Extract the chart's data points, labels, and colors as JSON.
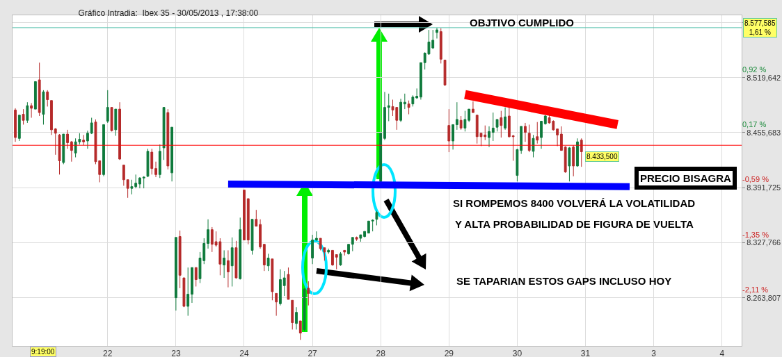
{
  "chart_data": {
    "type": "candlestick",
    "title": "Gráfico Intradia:  Ibex 35 - 30/05/2013 , 17:38:00",
    "categories": [
      null,
      null,
      null,
      null,
      null,
      null,
      null,
      null,
      null,
      null,
      null,
      null,
      null,
      null,
      null,
      null,
      null,
      null,
      null,
      null,
      null,
      null,
      null,
      "22",
      null,
      null,
      null,
      null,
      null,
      null,
      null,
      null,
      null,
      null,
      null,
      null,
      null,
      null,
      null,
      null,
      "23",
      null,
      null,
      null,
      null,
      null,
      null,
      null,
      null,
      null,
      null,
      null,
      null,
      null,
      null,
      null,
      null,
      "24",
      null,
      null,
      null,
      null,
      null,
      null,
      null,
      null,
      null,
      null,
      null,
      null,
      null,
      null,
      null,
      null,
      "27",
      null,
      null,
      null,
      null,
      null,
      null,
      null,
      null,
      null,
      null,
      null,
      null,
      null,
      null,
      null,
      null,
      "28",
      null,
      null,
      null,
      null,
      null,
      null,
      null,
      null,
      null,
      null,
      null,
      null,
      null,
      null,
      null,
      null,
      "29",
      null,
      null,
      null,
      null,
      null,
      null,
      null,
      null,
      null,
      null,
      null,
      null,
      null,
      null,
      null,
      null,
      "30",
      null,
      null,
      null,
      null,
      null,
      null,
      null,
      null,
      null,
      null,
      null,
      null,
      null,
      null,
      null,
      null,
      "31",
      null,
      null,
      null,
      null,
      null,
      null,
      null,
      null,
      null,
      null,
      null,
      null,
      null,
      null,
      null,
      null,
      "3",
      null,
      null,
      null,
      null,
      null,
      null,
      null,
      null,
      null,
      null,
      null,
      null,
      null,
      null,
      null,
      null,
      "4",
      null,
      null,
      null,
      null
    ],
    "ohlc": [
      [
        8482,
        8484,
        8445,
        8450
      ],
      [
        8449,
        8476,
        8446,
        8476
      ],
      [
        8477,
        8483,
        8465,
        8470
      ],
      [
        8470,
        8491,
        8467,
        8487
      ],
      [
        8487,
        8490,
        8473,
        8484
      ],
      [
        8483,
        8515,
        8483,
        8515
      ],
      [
        8517,
        8537,
        8475,
        8479
      ],
      [
        8477,
        8505,
        8465,
        8503
      ],
      [
        8503,
        8505,
        8486,
        8494
      ],
      [
        8493,
        8493,
        8453,
        8459
      ],
      [
        8460,
        8461,
        8430,
        8455
      ],
      [
        8453,
        8454,
        8407,
        8423
      ],
      [
        8421,
        8454,
        8419,
        8454
      ],
      [
        8454,
        8459,
        8437,
        8444
      ],
      [
        8445,
        8446,
        8422,
        8435
      ],
      [
        8432,
        8449,
        8427,
        8445
      ],
      [
        8445,
        8455,
        8442,
        8448
      ],
      [
        8447,
        8453,
        8441,
        8445
      ],
      [
        8446,
        8458,
        8437,
        8455
      ],
      [
        8455,
        8473,
        8454,
        8467
      ],
      [
        8468,
        8471,
        8419,
        8422
      ],
      [
        8423,
        8423,
        8398,
        8407
      ],
      [
        8407,
        8465,
        8405,
        8465
      ],
      [
        8469,
        8505,
        8467,
        8485
      ],
      [
        8485,
        8485,
        8457,
        8458
      ],
      [
        8459,
        8483,
        8452,
        8483
      ],
      [
        8483,
        8491,
        8424,
        8425
      ],
      [
        8418,
        8418,
        8394,
        8401
      ],
      [
        8401,
        8401,
        8380,
        8391
      ],
      [
        8391,
        8401,
        8384,
        8393
      ],
      [
        8393,
        8407,
        8391,
        8397
      ],
      [
        8396,
        8404,
        8391,
        8403
      ],
      [
        8403,
        8405,
        8391,
        8404
      ],
      [
        8405,
        8437,
        8404,
        8434
      ],
      [
        8433,
        8437,
        8407,
        8414
      ],
      [
        8414,
        8422,
        8404,
        8407
      ],
      [
        8407,
        8442,
        8403,
        8434
      ],
      [
        8438,
        8485,
        8424,
        8485
      ],
      [
        8479,
        8483,
        8413,
        8417
      ],
      [
        8409,
        8462,
        8399,
        8462
      ],
      [
        8264,
        8334,
        8249,
        8334
      ],
      [
        8335,
        8342,
        8275,
        8290
      ],
      [
        8287,
        8287,
        8253,
        8254
      ],
      [
        8254,
        8299,
        8243,
        8268
      ],
      [
        8268,
        8299,
        8258,
        8299
      ],
      [
        8299,
        8299,
        8277,
        8285
      ],
      [
        8286,
        8317,
        8281,
        8310
      ],
      [
        8307,
        8333,
        8303,
        8327
      ],
      [
        8327,
        8355,
        8321,
        8343
      ],
      [
        8343,
        8346,
        8317,
        8326
      ],
      [
        8329,
        8341,
        8323,
        8325
      ],
      [
        8329,
        8333,
        8290,
        8303
      ],
      [
        8302,
        8319,
        8287,
        8310
      ],
      [
        8307,
        8319,
        8276,
        8294
      ],
      [
        8301,
        8334,
        8277,
        8322
      ],
      [
        8322,
        8330,
        8286,
        8287
      ],
      [
        8286,
        8357,
        8285,
        8343
      ],
      [
        8389,
        8389,
        8331,
        8331
      ],
      [
        8379,
        8379,
        8326,
        8331
      ],
      [
        8319,
        8355,
        8314,
        8355
      ],
      [
        8355,
        8366,
        8347,
        8347
      ],
      [
        8349,
        8355,
        8321,
        8323
      ],
      [
        8326,
        8326,
        8295,
        8302
      ],
      [
        8301,
        8315,
        8295,
        8310
      ],
      [
        8309,
        8309,
        8261,
        8271
      ],
      [
        8269,
        8269,
        8243,
        8259
      ],
      [
        8257,
        8297,
        8255,
        8285
      ],
      [
        8278,
        8295,
        8266,
        8287
      ],
      [
        8291,
        8299,
        8262,
        8262
      ],
      [
        8261,
        8261,
        8227,
        8235
      ],
      [
        8234,
        8253,
        8227,
        8247
      ],
      [
        8237,
        8237,
        8215,
        8223
      ],
      [
        8227,
        8275,
        8225,
        8274
      ],
      [
        8275,
        8283,
        8255,
        8269
      ],
      [
        8310,
        8337,
        8303,
        8331
      ],
      [
        8331,
        8341,
        8330,
        8333
      ],
      [
        8333,
        8333,
        8319,
        8321
      ],
      [
        8322,
        8322,
        8307,
        8317
      ],
      [
        8317,
        8321,
        8315,
        8319
      ],
      [
        8319,
        8319,
        8301,
        8302
      ],
      [
        8314,
        8314,
        8297,
        8311
      ],
      [
        8302,
        8317,
        8301,
        8315
      ],
      [
        8319,
        8319,
        8313,
        8317
      ],
      [
        8315,
        8326,
        8314,
        8326
      ],
      [
        8326,
        8334,
        8318,
        8334
      ],
      [
        8334,
        8335,
        8330,
        8332
      ],
      [
        8333,
        8337,
        8329,
        8337
      ],
      [
        8335,
        8341,
        8334,
        8341
      ],
      [
        8339,
        8353,
        8339,
        8353
      ],
      [
        8353,
        8355,
        8341,
        8354
      ],
      [
        8355,
        8365,
        8348,
        8363
      ],
      [
        8399,
        8455,
        8398,
        8455
      ],
      [
        8449,
        8503,
        8447,
        8485
      ],
      [
        8485,
        8501,
        8469,
        8487
      ],
      [
        8486,
        8494,
        8475,
        8482
      ],
      [
        8485,
        8485,
        8459,
        8470
      ],
      [
        8470,
        8495,
        8468,
        8491
      ],
      [
        8489,
        8501,
        8483,
        8491
      ],
      [
        8489,
        8493,
        8477,
        8485
      ],
      [
        8489,
        8499,
        8486,
        8497
      ],
      [
        8496,
        8507,
        8495,
        8498
      ],
      [
        8497,
        8537,
        8494,
        8537
      ],
      [
        8537,
        8549,
        8529,
        8548
      ],
      [
        8547,
        8575,
        8546,
        8561
      ],
      [
        8554,
        8575,
        8553,
        8563
      ],
      [
        8572,
        8577.585,
        8565,
        8575
      ],
      [
        8573,
        8577,
        8536,
        8541
      ],
      [
        8540,
        8540,
        8510,
        8511
      ],
      [
        8464,
        8483,
        8433,
        8446
      ],
      [
        8446,
        8465,
        8436,
        8465
      ],
      [
        8465,
        8491,
        8459,
        8471
      ],
      [
        8470,
        8475,
        8459,
        8461
      ],
      [
        8461,
        8481,
        8457,
        8471
      ],
      [
        8470,
        8483,
        8468,
        8483
      ],
      [
        8483,
        8492,
        8479,
        8479
      ],
      [
        8476,
        8476,
        8443,
        8451
      ],
      [
        8455,
        8455,
        8440,
        8451
      ],
      [
        8453,
        8464,
        8447,
        8451
      ],
      [
        8450,
        8463,
        8439,
        8457
      ],
      [
        8456,
        8479,
        8446,
        8461
      ],
      [
        8462,
        8471,
        8457,
        8471
      ],
      [
        8473,
        8481,
        8450,
        8464
      ],
      [
        8461,
        8485,
        8459,
        8474
      ],
      [
        8475,
        8485,
        8450,
        8451
      ],
      [
        8452,
        8453,
        8423,
        8451
      ],
      [
        8406,
        8437,
        8399,
        8436
      ],
      [
        8435,
        8463,
        8431,
        8463
      ],
      [
        8463,
        8467,
        8445,
        8456
      ],
      [
        8455,
        8465,
        8433,
        8435
      ],
      [
        8434,
        8453,
        8427,
        8449
      ],
      [
        8451,
        8468,
        8443,
        8447
      ],
      [
        8450,
        8469,
        8437,
        8469
      ],
      [
        8466,
        8476,
        8465,
        8475
      ],
      [
        8473,
        8476,
        8466,
        8467
      ],
      [
        8469,
        8470,
        8458,
        8459
      ],
      [
        8460,
        8460,
        8440,
        8453
      ],
      [
        8454,
        8463,
        8435,
        8435
      ],
      [
        8439,
        8440,
        8409,
        8410
      ],
      [
        8417,
        8439,
        8399,
        8438
      ],
      [
        8439,
        8441,
        8405,
        8417
      ],
      [
        8417,
        8449,
        8416,
        8445
      ],
      [
        8447,
        8449,
        8416,
        8433.5
      ],
      null,
      null,
      null,
      null,
      null,
      null,
      null,
      null,
      null,
      null,
      null,
      null,
      null,
      null,
      null,
      null,
      null,
      null,
      null,
      null,
      null,
      null,
      null,
      null,
      null,
      null,
      null,
      null,
      null,
      null,
      null,
      null,
      null,
      null,
      null,
      null,
      null,
      null,
      null
    ],
    "series": [
      {
        "type": "line",
        "color": "#0000ff",
        "values": [
          null,
          null,
          null,
          null,
          null,
          null,
          null,
          null,
          null,
          null,
          null,
          null,
          null,
          null,
          null,
          null,
          null,
          null,
          null,
          null,
          null,
          null,
          null,
          null,
          null,
          null,
          null,
          null,
          null,
          null,
          null,
          null,
          null,
          null,
          null,
          null,
          null,
          null,
          null,
          null,
          null,
          null,
          null,
          null,
          null,
          null,
          null,
          null,
          null,
          null,
          null,
          null,
          null,
          8396,
          null,
          null,
          null,
          null,
          null,
          null,
          null,
          null,
          null,
          null,
          null,
          null,
          null,
          null,
          null,
          null,
          null,
          null,
          null,
          null,
          null,
          null,
          null,
          null,
          null,
          null,
          null,
          null,
          null,
          null,
          null,
          null,
          null,
          null,
          null,
          null,
          null,
          null,
          null,
          null,
          null,
          null,
          null,
          null,
          null,
          null,
          null,
          null,
          null,
          null,
          null,
          null,
          null,
          null,
          null,
          null,
          null,
          null,
          null,
          null,
          null,
          null,
          null,
          null,
          null,
          null,
          null,
          null,
          null,
          null,
          null,
          null,
          null,
          null,
          null,
          null,
          null,
          null,
          null,
          null,
          null,
          null,
          null,
          null,
          null,
          null,
          null,
          null,
          null,
          null,
          null,
          null,
          null,
          null,
          null,
          null,
          null,
          null,
          null,
          8393,
          null,
          null,
          null,
          null,
          null,
          null,
          null,
          null,
          null,
          null,
          null,
          null,
          null,
          null,
          null,
          null,
          null,
          null,
          null,
          null,
          null,
          null,
          null,
          null,
          null,
          null,
          null
        ]
      },
      {
        "type": "line",
        "color": "#ff0000",
        "values": [
          null,
          null,
          null,
          null,
          null,
          null,
          null,
          null,
          null,
          null,
          null,
          null,
          null,
          null,
          null,
          null,
          null,
          null,
          null,
          null,
          null,
          null,
          null,
          null,
          null,
          null,
          null,
          null,
          null,
          null,
          null,
          null,
          null,
          null,
          null,
          null,
          null,
          null,
          null,
          null,
          null,
          null,
          null,
          null,
          null,
          null,
          null,
          null,
          null,
          null,
          null,
          null,
          null,
          null,
          null,
          null,
          null,
          null,
          null,
          null,
          null,
          null,
          null,
          null,
          null,
          null,
          null,
          null,
          null,
          null,
          null,
          null,
          null,
          null,
          null,
          null,
          null,
          null,
          null,
          null,
          null,
          null,
          null,
          null,
          null,
          null,
          null,
          null,
          null,
          null,
          null,
          null,
          null,
          null,
          null,
          null,
          null,
          null,
          null,
          null,
          null,
          null,
          null,
          null,
          null,
          null,
          null,
          null,
          null,
          null,
          null,
          null,
          8500,
          null,
          null,
          null,
          null,
          null,
          null,
          null,
          null,
          null,
          null,
          null,
          null,
          null,
          null,
          null,
          null,
          null,
          null,
          null,
          null,
          null,
          null,
          null,
          null,
          null,
          null,
          null,
          null,
          null,
          null,
          null,
          null,
          null,
          null,
          null,
          null,
          null,
          8465,
          null,
          null,
          null,
          null,
          null,
          null,
          null,
          null,
          null,
          null,
          null,
          null,
          null,
          null,
          null,
          null,
          null,
          null,
          null,
          null,
          null,
          null,
          null,
          null,
          null,
          null,
          null,
          null,
          null,
          null
        ]
      }
    ],
    "ylim": [
      8208,
      8592
    ],
    "yticks": [
      {
        "value": 8263.807,
        "label": "8.263,807"
      },
      {
        "value": 8327.766,
        "label": "8.327,766"
      },
      {
        "value": 8391.725,
        "label": "8.391,725"
      },
      {
        "value": 8455.683,
        "label": "8.455,683"
      },
      {
        "value": 8519.642,
        "label": "8.519,642"
      },
      {
        "value": 8583.6,
        "label": null
      }
    ],
    "y2lim": [
      -2.764,
      1.785
    ],
    "y2ticks": [
      {
        "value": -2.11,
        "label": "-2,11 %"
      },
      {
        "value": -1.35,
        "label": "-1,35 %"
      },
      {
        "value": -0.59,
        "label": "-0,59 %"
      },
      {
        "value": 0.17,
        "label": "0,17 %"
      },
      {
        "value": 0.92,
        "label": "0,92 %"
      }
    ],
    "ref_lines": [
      {
        "axis": "y",
        "value": 8577.585,
        "label": "8.577,585\n1,61 %",
        "color": "#5cc2b0"
      },
      {
        "axis": "y",
        "value": 8441,
        "color": "#ff0000"
      }
    ],
    "annotations": [
      "OBJTIVO CUMPLIDO",
      "PRECIO BISAGRA",
      "SI ROMPEMOS 8400 VOLVERÁ LA VOLATILIDAD",
      "Y ALTA PROBABILIDAD DE FIGURA DE VUELTA",
      "SE TAPARIAN ESTOS GAPS INCLUSO HOY",
      "9:19:00",
      "8.433,500"
    ],
    "grid": true
  }
}
